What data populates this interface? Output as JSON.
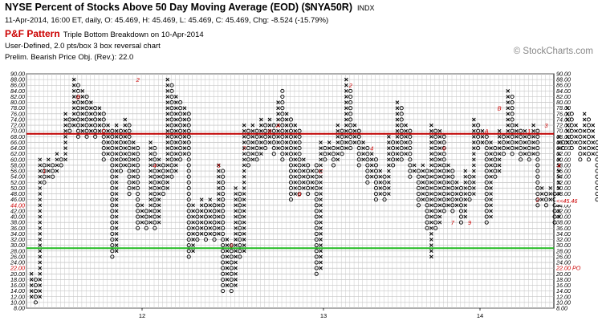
{
  "header": {
    "title": "NYSE Percent of Stocks Above 50 Day Moving Average (EOD) ($NYA50R)",
    "exchange": "INDX",
    "subtitle": "11-Apr-2014, 16:00 ET, daily, O: 45.469, H: 45.469, L: 45.469, C: 45.469, Chg: -8.524 (-15.79%)",
    "pattern_name": "P&F Pattern",
    "pattern_desc": "Triple Bottom Breakdown on 10-Apr-2014",
    "scale": "User-Defined, 2.0 pts/box 3 box reversal chart",
    "objective": "Prelim. Bearish Price Obj. (Rev.): 22.0",
    "watermark": "© StockCharts.com"
  },
  "chart_data": {
    "type": "point-and-figure",
    "box_size": 2.0,
    "reversal": 3,
    "ylim": [
      8,
      90
    ],
    "y_ticks": [
      "8.00",
      "10.00",
      "12.00",
      "14.00",
      "16.00",
      "18.00",
      "20.00",
      "22.00",
      "24.00",
      "26.00",
      "28.00",
      "30.00",
      "32.00",
      "34.00",
      "36.00",
      "38.00",
      "40.00",
      "42.00",
      "44.00",
      "46.00",
      "48.00",
      "50.00",
      "52.00",
      "54.00",
      "56.00",
      "58.00",
      "60.00",
      "62.00",
      "64.00",
      "66.00",
      "68.00",
      "70.00",
      "72.00",
      "74.00",
      "76.00",
      "78.00",
      "80.00",
      "82.00",
      "84.00",
      "86.00",
      "88.00",
      "90.00"
    ],
    "x_labels": [
      "12",
      "13",
      "14"
    ],
    "reference_lines": [
      {
        "name": "upper",
        "value": 69,
        "color": "#c00000"
      },
      {
        "name": "lower",
        "value": 29,
        "color": "#22bb22"
      }
    ],
    "price_labels": [
      {
        "text": "44.00",
        "value": 44,
        "side": "left"
      },
      {
        "text": "22.00",
        "value": 22,
        "side": "left"
      },
      {
        "text": "<<45.46",
        "value": 45.46,
        "side": "right"
      },
      {
        "text": "22.00 PO",
        "value": 22,
        "side": "right"
      }
    ],
    "columns": [
      {
        "t": "X",
        "lo": 12,
        "hi": 20
      },
      {
        "t": "O",
        "lo": 10,
        "hi": 18
      },
      {
        "t": "X",
        "lo": 12,
        "hi": 60
      },
      {
        "t": "O",
        "lo": 52,
        "hi": 58
      },
      {
        "t": "X",
        "lo": 54,
        "hi": 60
      },
      {
        "t": "O",
        "lo": 54,
        "hi": 58
      },
      {
        "t": "X",
        "lo": 56,
        "hi": 62
      },
      {
        "t": "O",
        "lo": 58,
        "hi": 60
      },
      {
        "t": "X",
        "lo": 60,
        "hi": 76
      },
      {
        "t": "O",
        "lo": 70,
        "hi": 74
      },
      {
        "t": "X",
        "lo": 72,
        "hi": 88
      },
      {
        "t": "O",
        "lo": 68,
        "hi": 86
      },
      {
        "t": "X",
        "lo": 70,
        "hi": 84
      },
      {
        "t": "O",
        "lo": 68,
        "hi": 82
      },
      {
        "t": "X",
        "lo": 70,
        "hi": 80
      },
      {
        "t": "O",
        "lo": 68,
        "hi": 78
      },
      {
        "t": "X",
        "lo": 70,
        "hi": 78
      },
      {
        "t": "O",
        "lo": 60,
        "hi": 76
      },
      {
        "t": "X",
        "lo": 62,
        "hi": 72
      },
      {
        "t": "O",
        "lo": 26,
        "hi": 70
      },
      {
        "t": "X",
        "lo": 28,
        "hi": 72
      },
      {
        "t": "O",
        "lo": 56,
        "hi": 70
      },
      {
        "t": "X",
        "lo": 58,
        "hi": 74
      },
      {
        "t": "O",
        "lo": 48,
        "hi": 72
      },
      {
        "t": "X",
        "lo": 50,
        "hi": 66
      },
      {
        "t": "O",
        "lo": 36,
        "hi": 64
      },
      {
        "t": "X",
        "lo": 38,
        "hi": 44
      },
      {
        "t": "O",
        "lo": 36,
        "hi": 42
      },
      {
        "t": "X",
        "lo": 38,
        "hi": 66
      },
      {
        "t": "O",
        "lo": 36,
        "hi": 64
      },
      {
        "t": "X",
        "lo": 38,
        "hi": 60
      },
      {
        "t": "O",
        "lo": 48,
        "hi": 58
      },
      {
        "t": "X",
        "lo": 50,
        "hi": 88
      },
      {
        "t": "O",
        "lo": 54,
        "hi": 86
      },
      {
        "t": "X",
        "lo": 56,
        "hi": 82
      },
      {
        "t": "O",
        "lo": 60,
        "hi": 80
      },
      {
        "t": "X",
        "lo": 62,
        "hi": 78
      },
      {
        "t": "O",
        "lo": 26,
        "hi": 76
      },
      {
        "t": "X",
        "lo": 28,
        "hi": 44
      },
      {
        "t": "O",
        "lo": 32,
        "hi": 42
      },
      {
        "t": "X",
        "lo": 34,
        "hi": 46
      },
      {
        "t": "O",
        "lo": 32,
        "hi": 44
      },
      {
        "t": "X",
        "lo": 34,
        "hi": 46
      },
      {
        "t": "O",
        "lo": 32,
        "hi": 44
      },
      {
        "t": "X",
        "lo": 34,
        "hi": 58
      },
      {
        "t": "O",
        "lo": 14,
        "hi": 56
      },
      {
        "t": "X",
        "lo": 16,
        "hi": 32
      },
      {
        "t": "O",
        "lo": 14,
        "hi": 30
      },
      {
        "t": "X",
        "lo": 16,
        "hi": 50
      },
      {
        "t": "O",
        "lo": 26,
        "hi": 48
      },
      {
        "t": "X",
        "lo": 28,
        "hi": 72
      },
      {
        "t": "O",
        "lo": 58,
        "hi": 70
      },
      {
        "t": "X",
        "lo": 60,
        "hi": 72
      },
      {
        "t": "O",
        "lo": 60,
        "hi": 70
      },
      {
        "t": "X",
        "lo": 62,
        "hi": 74
      },
      {
        "t": "O",
        "lo": 64,
        "hi": 72
      },
      {
        "t": "X",
        "lo": 66,
        "hi": 74
      },
      {
        "t": "O",
        "lo": 62,
        "hi": 72
      },
      {
        "t": "X",
        "lo": 64,
        "hi": 80
      },
      {
        "t": "O",
        "lo": 60,
        "hi": 84
      },
      {
        "t": "X",
        "lo": 62,
        "hi": 76
      },
      {
        "t": "O",
        "lo": 46,
        "hi": 74
      },
      {
        "t": "X",
        "lo": 48,
        "hi": 72
      },
      {
        "t": "O",
        "lo": 48,
        "hi": 70
      },
      {
        "t": "X",
        "lo": 50,
        "hi": 60
      },
      {
        "t": "O",
        "lo": 48,
        "hi": 58
      },
      {
        "t": "X",
        "lo": 50,
        "hi": 56
      },
      {
        "t": "O",
        "lo": 20,
        "hi": 58
      },
      {
        "t": "X",
        "lo": 22,
        "hi": 66
      },
      {
        "t": "O",
        "lo": 60,
        "hi": 64
      },
      {
        "t": "X",
        "lo": 62,
        "hi": 66
      },
      {
        "t": "O",
        "lo": 58,
        "hi": 64
      },
      {
        "t": "X",
        "lo": 60,
        "hi": 72
      },
      {
        "t": "O",
        "lo": 62,
        "hi": 70
      },
      {
        "t": "X",
        "lo": 64,
        "hi": 88
      },
      {
        "t": "O",
        "lo": 64,
        "hi": 84
      },
      {
        "t": "X",
        "lo": 66,
        "hi": 72
      },
      {
        "t": "O",
        "lo": 58,
        "hi": 70
      },
      {
        "t": "X",
        "lo": 60,
        "hi": 66
      },
      {
        "t": "O",
        "lo": 52,
        "hi": 64
      },
      {
        "t": "X",
        "lo": 54,
        "hi": 62
      },
      {
        "t": "O",
        "lo": 46,
        "hi": 60
      },
      {
        "t": "X",
        "lo": 48,
        "hi": 56
      },
      {
        "t": "O",
        "lo": 46,
        "hi": 54
      },
      {
        "t": "X",
        "lo": 48,
        "hi": 68
      },
      {
        "t": "O",
        "lo": 58,
        "hi": 66
      },
      {
        "t": "X",
        "lo": 60,
        "hi": 80
      },
      {
        "t": "O",
        "lo": 60,
        "hi": 78
      },
      {
        "t": "X",
        "lo": 62,
        "hi": 72
      },
      {
        "t": "O",
        "lo": 54,
        "hi": 70
      },
      {
        "t": "X",
        "lo": 56,
        "hi": 58
      },
      {
        "t": "O",
        "lo": 44,
        "hi": 56
      },
      {
        "t": "X",
        "lo": 46,
        "hi": 58
      },
      {
        "t": "O",
        "lo": 36,
        "hi": 56
      },
      {
        "t": "X",
        "lo": 26,
        "hi": 72
      },
      {
        "t": "O",
        "lo": 36,
        "hi": 70
      },
      {
        "t": "X",
        "lo": 38,
        "hi": 70
      },
      {
        "t": "O",
        "lo": 42,
        "hi": 68
      },
      {
        "t": "X",
        "lo": 44,
        "hi": 58
      },
      {
        "t": "O",
        "lo": 42,
        "hi": 56
      },
      {
        "t": "X",
        "lo": 44,
        "hi": 52
      },
      {
        "t": "O",
        "lo": 38,
        "hi": 50
      },
      {
        "t": "X",
        "lo": 40,
        "hi": 56
      },
      {
        "t": "O",
        "lo": 46,
        "hi": 54
      },
      {
        "t": "X",
        "lo": 48,
        "hi": 74
      },
      {
        "t": "O",
        "lo": 64,
        "hi": 72
      },
      {
        "t": "X",
        "lo": 66,
        "hi": 70
      },
      {
        "t": "O",
        "lo": 38,
        "hi": 68
      },
      {
        "t": "X",
        "lo": 40,
        "hi": 66
      },
      {
        "t": "O",
        "lo": 54,
        "hi": 64
      },
      {
        "t": "X",
        "lo": 56,
        "hi": 70
      },
      {
        "t": "O",
        "lo": 62,
        "hi": 68
      },
      {
        "t": "X",
        "lo": 64,
        "hi": 84
      },
      {
        "t": "O",
        "lo": 62,
        "hi": 82
      },
      {
        "t": "X",
        "lo": 64,
        "hi": 72
      },
      {
        "t": "O",
        "lo": 60,
        "hi": 70
      },
      {
        "t": "X",
        "lo": 62,
        "hi": 70
      },
      {
        "t": "O",
        "lo": 60,
        "hi": 68
      },
      {
        "t": "X",
        "lo": 62,
        "hi": 72
      },
      {
        "t": "O",
        "lo": 44,
        "hi": 70
      },
      {
        "t": "X",
        "lo": 46,
        "hi": 50
      },
      {
        "t": "O",
        "lo": 44,
        "hi": 48
      },
      {
        "t": "X",
        "lo": 46,
        "hi": 50
      },
      {
        "t": "O",
        "lo": 38,
        "hi": 48
      },
      {
        "t": "X",
        "lo": 40,
        "hi": 68
      },
      {
        "t": "O",
        "lo": 64,
        "hi": 66
      },
      {
        "t": "X",
        "lo": 66,
        "hi": 78
      },
      {
        "t": "O",
        "lo": 64,
        "hi": 76
      },
      {
        "t": "X",
        "lo": 66,
        "hi": 72
      },
      {
        "t": "O",
        "lo": 60,
        "hi": 70
      },
      {
        "t": "X",
        "lo": 62,
        "hi": 76
      },
      {
        "t": "O",
        "lo": 60,
        "hi": 74
      },
      {
        "t": "X",
        "lo": 62,
        "hi": 72
      },
      {
        "t": "O",
        "lo": 46,
        "hi": 66
      }
    ],
    "month_markers": [
      {
        "col": 3,
        "v": 56,
        "t": "1"
      },
      {
        "col": 11,
        "v": 82,
        "t": "B"
      },
      {
        "col": 17,
        "v": 70,
        "t": "C"
      },
      {
        "col": 25,
        "v": 88,
        "t": "2"
      },
      {
        "col": 29,
        "v": 58,
        "t": "4"
      },
      {
        "col": 44,
        "v": 58,
        "t": "5"
      },
      {
        "col": 47,
        "v": 30,
        "t": "6"
      },
      {
        "col": 50,
        "v": 64,
        "t": "7"
      },
      {
        "col": 56,
        "v": 70,
        "t": "9"
      },
      {
        "col": 58,
        "v": 72,
        "t": "A"
      },
      {
        "col": 63,
        "v": 48,
        "t": "B"
      },
      {
        "col": 68,
        "v": 56,
        "t": "C"
      },
      {
        "col": 75,
        "v": 86,
        "t": "2"
      },
      {
        "col": 80,
        "v": 64,
        "t": "4"
      },
      {
        "col": 97,
        "v": 64,
        "t": "6"
      },
      {
        "col": 99,
        "v": 38,
        "t": "7"
      },
      {
        "col": 103,
        "v": 38,
        "t": "9"
      },
      {
        "col": 107,
        "v": 70,
        "t": "A"
      },
      {
        "col": 110,
        "v": 78,
        "t": "B"
      },
      {
        "col": 117,
        "v": 70,
        "t": "1"
      },
      {
        "col": 119,
        "v": 46,
        "t": "2"
      },
      {
        "col": 121,
        "v": 72,
        "t": "3"
      },
      {
        "col": 124,
        "v": 58,
        "t": "4"
      }
    ]
  }
}
